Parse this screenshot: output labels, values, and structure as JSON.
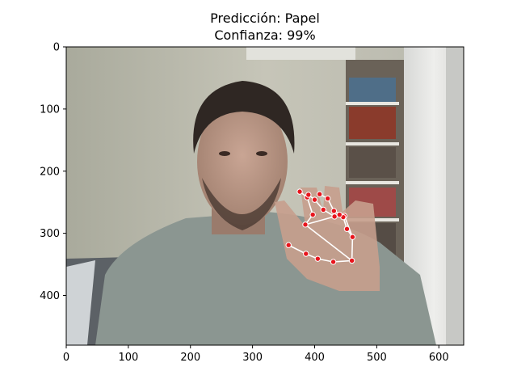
{
  "figure": {
    "title_line1": "Predicción: Papel",
    "title_line2": "Confianza: 99%"
  },
  "chart_data": {
    "type": "scatter",
    "image_size": [
      640,
      480
    ],
    "x_ticks": [
      0,
      100,
      200,
      300,
      400,
      500,
      600
    ],
    "y_ticks": [
      0,
      100,
      200,
      300,
      400
    ],
    "xlim": [
      0,
      640
    ],
    "ylim": [
      480,
      0
    ],
    "colors": {
      "landmark": "#e8141c",
      "connection": "#ffffff",
      "wall": "#bdbcae"
    },
    "landmarks": [
      [
        460,
        344
      ],
      [
        430,
        346
      ],
      [
        405,
        341
      ],
      [
        386,
        333
      ],
      [
        358,
        319
      ],
      [
        385,
        286
      ],
      [
        397,
        270
      ],
      [
        388,
        242
      ],
      [
        376,
        233
      ],
      [
        432,
        273
      ],
      [
        414,
        262
      ],
      [
        400,
        246
      ],
      [
        390,
        238
      ],
      [
        448,
        272
      ],
      [
        431,
        264
      ],
      [
        421,
        244
      ],
      [
        408,
        237
      ],
      [
        461,
        306
      ],
      [
        452,
        293
      ],
      [
        446,
        274
      ],
      [
        440,
        270
      ]
    ],
    "connections": [
      [
        0,
        1
      ],
      [
        1,
        2
      ],
      [
        2,
        3
      ],
      [
        3,
        4
      ],
      [
        0,
        5
      ],
      [
        5,
        6
      ],
      [
        6,
        7
      ],
      [
        7,
        8
      ],
      [
        5,
        9
      ],
      [
        9,
        10
      ],
      [
        10,
        11
      ],
      [
        11,
        12
      ],
      [
        9,
        13
      ],
      [
        13,
        14
      ],
      [
        14,
        15
      ],
      [
        15,
        16
      ],
      [
        13,
        17
      ],
      [
        0,
        17
      ],
      [
        17,
        18
      ],
      [
        18,
        19
      ],
      [
        19,
        20
      ]
    ]
  }
}
